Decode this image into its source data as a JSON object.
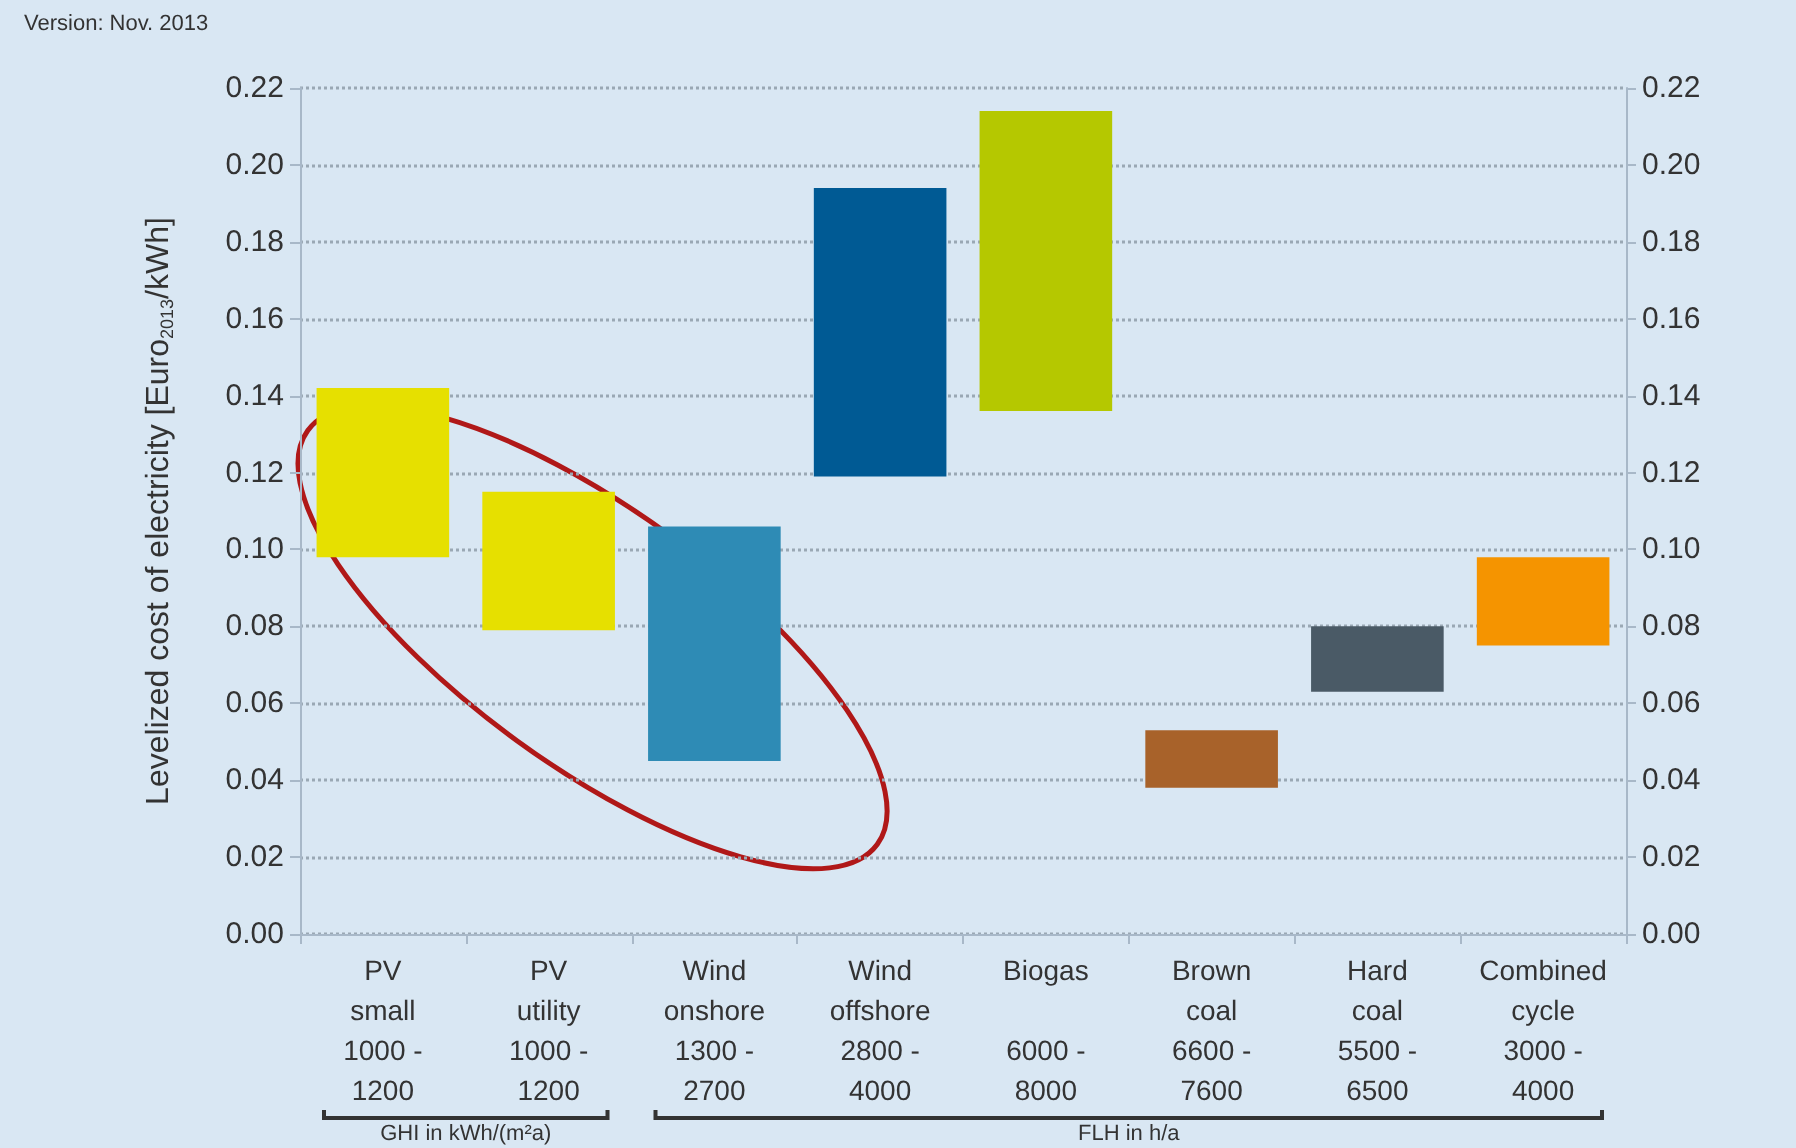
{
  "chart_data": {
    "type": "bar",
    "annotations": [
      "Version: Nov. 2013",
      "GHI in kWh/(m²a)",
      "FLH in h/a"
    ],
    "ylabel": "Levelized cost of electricity [Euro$_{2013}$/kWh]",
    "categories": [
      "PV\nsmall\n1000 -\n1200",
      "PV\nutility\n1000 -\n1200",
      "Wind\nonshore\n1300 -\n2700",
      "Wind\noffshore\n2800 -\n4000",
      "Biogas\n\n6000 -\n8000",
      "Brown\ncoal\n6600 -\n7600",
      "Hard\ncoal\n5500 -\n6500",
      "Combined\ncycle\n3000 -\n4000"
    ],
    "base": [
      0.098,
      0.079,
      0.045,
      0.119,
      0.136,
      0.038,
      0.063,
      0.075
    ],
    "values": [
      0.044,
      0.036,
      0.061,
      0.075,
      0.078,
      0.015,
      0.017,
      0.023
    ],
    "colors": [
      "#e6e000",
      "#e6e000",
      "#2e8bb5",
      "#005a94",
      "#b5c800",
      "#a8622a",
      "#4a5a66",
      "#f59400"
    ],
    "ylim": [
      0,
      0.22
    ],
    "yticks": [
      {
        "value": 0,
        "label": "0.00"
      },
      {
        "value": 0.02,
        "label": "0.02"
      },
      {
        "value": 0.04,
        "label": "0.04"
      },
      {
        "value": 0.06,
        "label": "0.06"
      },
      {
        "value": 0.08,
        "label": "0.08"
      },
      {
        "value": 0.1,
        "label": "0.10"
      },
      {
        "value": 0.12,
        "label": "0.12"
      },
      {
        "value": 0.14,
        "label": "0.14"
      },
      {
        "value": 0.16,
        "label": "0.16"
      },
      {
        "value": 0.18,
        "label": "0.18"
      },
      {
        "value": 0.2,
        "label": "0.20"
      },
      {
        "value": 0.22,
        "label": "0.22"
      }
    ],
    "y2lim": [
      0,
      0.22
    ],
    "y2ticks": [
      {
        "value": 0,
        "label": "0.00"
      },
      {
        "value": 0.02,
        "label": "0.02"
      },
      {
        "value": 0.04,
        "label": "0.04"
      },
      {
        "value": 0.06,
        "label": "0.06"
      },
      {
        "value": 0.08,
        "label": "0.08"
      },
      {
        "value": 0.1,
        "label": "0.10"
      },
      {
        "value": 0.12,
        "label": "0.12"
      },
      {
        "value": 0.14,
        "label": "0.14"
      },
      {
        "value": 0.16,
        "label": "0.16"
      },
      {
        "value": 0.18,
        "label": "0.18"
      },
      {
        "value": 0.2,
        "label": "0.20"
      },
      {
        "value": 0.22,
        "label": "0.22"
      }
    ],
    "grid": "y"
  }
}
